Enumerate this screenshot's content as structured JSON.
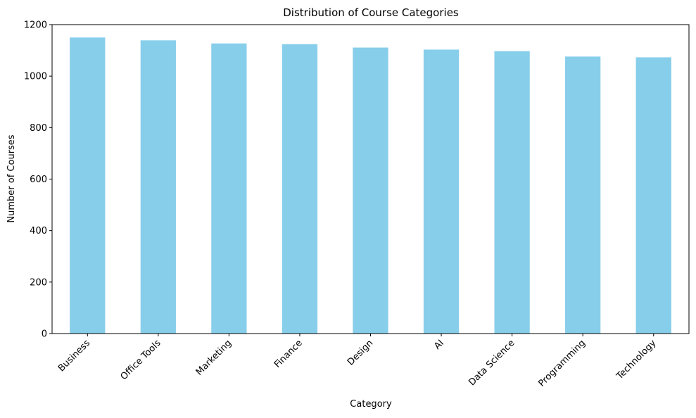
{
  "chart_data": {
    "type": "bar",
    "title": "Distribution of Course Categories",
    "xlabel": "Category",
    "ylabel": "Number of Courses",
    "categories": [
      "Business",
      "Office Tools",
      "Marketing",
      "Finance",
      "Design",
      "AI",
      "Data Science",
      "Programming",
      "Technology"
    ],
    "values": [
      1150,
      1139,
      1127,
      1124,
      1111,
      1103,
      1097,
      1076,
      1073
    ],
    "ylim": [
      0,
      1200
    ],
    "yticks": [
      0,
      200,
      400,
      600,
      800,
      1000,
      1200
    ],
    "grid": false,
    "legend": "none",
    "bar_color": "#87CEEB"
  }
}
